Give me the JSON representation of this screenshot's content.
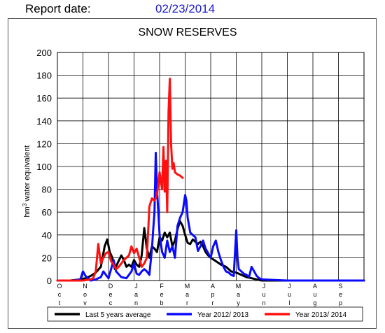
{
  "header": {
    "report_label": "Report date:",
    "report_date": "02/23/2014"
  },
  "colors": {
    "average": "#000000",
    "year_2012_2013": "#0a0aff",
    "year_2013_2014": "#ff1010",
    "grid": "#000000",
    "date_text": "#1a1ad0"
  },
  "chart_data": {
    "type": "line",
    "title": "SNOW RESERVES",
    "ylabel": "hm3 water equivalent",
    "ylabel_parts": {
      "prefix": "hm",
      "superscript": "3",
      "suffix": " water equivalent"
    },
    "ylim": [
      0,
      200
    ],
    "yticks": [
      0,
      20,
      40,
      60,
      80,
      100,
      120,
      140,
      160,
      180,
      200
    ],
    "xlim": [
      0,
      12
    ],
    "month_labels": [
      [
        "O",
        "c",
        "t"
      ],
      [
        "N",
        "o",
        "v"
      ],
      [
        "D",
        "e",
        "c"
      ],
      [
        "J",
        "a",
        "n"
      ],
      [
        "F",
        "e",
        "b"
      ],
      [
        "M",
        "a",
        "r"
      ],
      [
        "A",
        "p",
        "r"
      ],
      [
        "M",
        "a",
        "y"
      ],
      [
        "J",
        "u",
        "n"
      ],
      [
        "J",
        "u",
        "l"
      ],
      [
        "A",
        "u",
        "g"
      ],
      [
        "S",
        "e",
        "p"
      ]
    ],
    "grid": true,
    "legend_position": "bottom",
    "series": [
      {
        "name": "Last 5 years average",
        "color": "#000000",
        "x": [
          0,
          0.5,
          0.9,
          1.1,
          1.3,
          1.5,
          1.7,
          1.85,
          1.95,
          2.05,
          2.15,
          2.25,
          2.35,
          2.5,
          2.6,
          2.7,
          2.8,
          2.9,
          3.0,
          3.1,
          3.2,
          3.3,
          3.4,
          3.5,
          3.6,
          3.7,
          3.8,
          3.9,
          4.0,
          4.1,
          4.2,
          4.3,
          4.4,
          4.5,
          4.6,
          4.7,
          4.8,
          4.9,
          5.0,
          5.1,
          5.2,
          5.3,
          5.4,
          5.5,
          5.6,
          5.7,
          5.8,
          5.9,
          6.0,
          6.2,
          6.4,
          6.6,
          6.8,
          7.0,
          7.2,
          7.4,
          7.6,
          7.8,
          8.0,
          9.0,
          10.0,
          11.0,
          12.0
        ],
        "y": [
          0,
          0,
          1,
          2,
          4,
          7,
          12,
          30,
          36,
          25,
          20,
          10,
          15,
          22,
          18,
          12,
          14,
          12,
          18,
          14,
          12,
          22,
          46,
          28,
          20,
          30,
          28,
          25,
          38,
          35,
          42,
          38,
          42,
          30,
          35,
          45,
          52,
          48,
          40,
          33,
          32,
          36,
          34,
          32,
          34,
          30,
          25,
          22,
          20,
          17,
          14,
          12,
          8,
          7,
          5,
          3,
          2,
          1,
          0,
          0,
          0,
          0,
          0
        ]
      },
      {
        "name": "Year 2012/ 2013",
        "color": "#0a0aff",
        "x": [
          0,
          0.6,
          0.9,
          1.0,
          1.1,
          1.3,
          1.5,
          1.7,
          1.8,
          1.9,
          2.0,
          2.1,
          2.2,
          2.3,
          2.5,
          2.7,
          2.9,
          3.0,
          3.1,
          3.2,
          3.3,
          3.4,
          3.5,
          3.6,
          3.7,
          3.75,
          3.8,
          3.85,
          3.9,
          4.0,
          4.1,
          4.2,
          4.3,
          4.4,
          4.5,
          4.6,
          4.7,
          4.8,
          4.9,
          5.0,
          5.05,
          5.1,
          5.2,
          5.3,
          5.4,
          5.5,
          5.6,
          5.7,
          5.8,
          5.9,
          6.0,
          6.1,
          6.2,
          6.3,
          6.4,
          6.5,
          6.6,
          6.7,
          6.8,
          6.9,
          7.0,
          7.05,
          7.1,
          7.2,
          7.3,
          7.4,
          7.5,
          7.6,
          7.7,
          7.8,
          7.9,
          8.0,
          9.0,
          10.0,
          11.0,
          12.0
        ],
        "y": [
          0,
          0,
          1,
          8,
          4,
          0,
          1,
          3,
          8,
          5,
          2,
          10,
          18,
          8,
          3,
          2,
          8,
          15,
          6,
          5,
          8,
          10,
          8,
          5,
          28,
          45,
          60,
          112,
          80,
          40,
          25,
          20,
          35,
          25,
          30,
          20,
          48,
          55,
          60,
          75,
          70,
          55,
          42,
          40,
          38,
          26,
          30,
          35,
          28,
          24,
          20,
          30,
          35,
          25,
          18,
          12,
          8,
          7,
          5,
          4,
          44,
          20,
          10,
          8,
          6,
          5,
          3,
          12,
          8,
          4,
          2,
          1,
          0,
          0,
          0,
          0
        ]
      },
      {
        "name": "Year 2013/ 2014",
        "color": "#ff1010",
        "x": [
          0,
          0.5,
          1.0,
          1.3,
          1.4,
          1.5,
          1.6,
          1.7,
          1.8,
          1.9,
          2.0,
          2.1,
          2.2,
          2.3,
          2.4,
          2.5,
          2.6,
          2.7,
          2.8,
          2.9,
          3.0,
          3.1,
          3.2,
          3.3,
          3.4,
          3.5,
          3.6,
          3.7,
          3.8,
          3.9,
          4.0,
          4.1,
          4.15,
          4.2,
          4.25,
          4.3,
          4.35,
          4.4,
          4.45,
          4.5,
          4.55,
          4.6,
          4.7,
          4.8,
          4.9
        ],
        "y": [
          0,
          0,
          0,
          1,
          2,
          8,
          32,
          15,
          20,
          24,
          25,
          17,
          14,
          10,
          12,
          15,
          18,
          20,
          22,
          30,
          24,
          28,
          20,
          12,
          15,
          20,
          65,
          72,
          70,
          75,
          95,
          80,
          117,
          78,
          105,
          60,
          148,
          177,
          120,
          98,
          103,
          95,
          93,
          92,
          90
        ]
      }
    ]
  }
}
